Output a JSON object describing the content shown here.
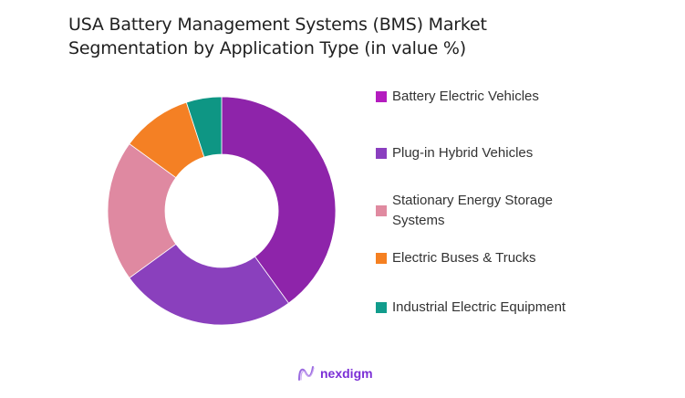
{
  "title_line1": "USA Battery Management Systems (BMS) Market",
  "title_line2": "Segmentation by Application Type (in value %)",
  "legend": [
    {
      "label": "Battery Electric Vehicles",
      "color": "#B41CBF"
    },
    {
      "label": "Plug-in Hybrid Vehicles",
      "color": "#8A3FBF"
    },
    {
      "label": "Stationary Energy Storage Systems",
      "color": "#E08AA0"
    },
    {
      "label": "Electric Buses & Trucks",
      "color": "#F58021"
    },
    {
      "label": "Industrial Electric Equipment",
      "color": "#119C8C"
    }
  ],
  "logo": {
    "text": "nexdigm"
  },
  "chart_data": {
    "type": "pie",
    "subtype": "donut",
    "title": "USA Battery Management Systems (BMS) Market Segmentation by Application Type (in value %)",
    "categories": [
      "Battery Electric Vehicles",
      "Plug-in Hybrid Vehicles",
      "Stationary Energy Storage Systems",
      "Electric Buses & Trucks",
      "Industrial Electric Equipment"
    ],
    "values": [
      40,
      25,
      20,
      10,
      5
    ],
    "colors": [
      "#8E24AA",
      "#8A40BD",
      "#DF89A1",
      "#F48024",
      "#0E9684"
    ],
    "unit": "%",
    "legend_position": "right"
  }
}
